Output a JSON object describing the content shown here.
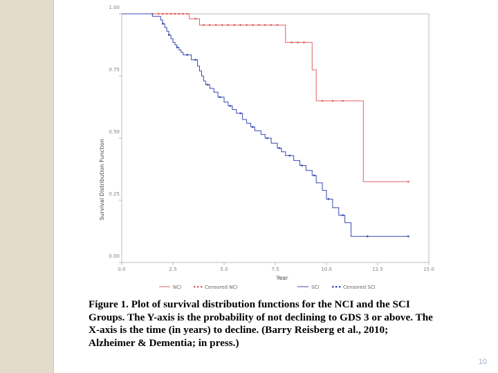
{
  "slide": {
    "caption": "Figure 1. Plot of survival distribution functions for the NCI and the SCI Groups. The Y-axis is the probability of not declining to GDS 3 or above. The X-axis is the time (in years) to decline. (Barry Reisberg et al., 2010; Alzheimer & Dementia; in press.)",
    "page_number": "10",
    "accent_color": "#e4dccb"
  },
  "chart_data": {
    "type": "line",
    "step": true,
    "xlabel": "Year",
    "ylabel": "Survival Distribution Function",
    "xlim": [
      0,
      15
    ],
    "ylim": [
      0,
      1
    ],
    "x_ticks": [
      "0.0",
      "2.5",
      "5.0",
      "7.5",
      "10.0",
      "12.5",
      "15.0"
    ],
    "y_ticks": [
      "0.00",
      "0.25",
      "0.50",
      "0.75",
      "1.00"
    ],
    "grid": false,
    "legend_position": "bottom",
    "legend": [
      {
        "label": "NCI",
        "kind": "line",
        "color": "#e06060"
      },
      {
        "label": "Censored NCI",
        "kind": "marker",
        "color": "#e06060"
      },
      {
        "label": "SCI",
        "kind": "line",
        "color": "#3548b0"
      },
      {
        "label": "Censored SCI",
        "kind": "marker",
        "color": "#3548b0"
      }
    ],
    "series": [
      {
        "name": "NCI",
        "color": "#e06060",
        "x": [
          0,
          3.3,
          3.8,
          8.0,
          9.3,
          9.5,
          11.8,
          14.0
        ],
        "y": [
          1.0,
          0.98,
          0.955,
          0.885,
          0.775,
          0.65,
          0.325,
          0.325
        ],
        "censored_x": [
          1.5,
          1.8,
          2.0,
          2.2,
          2.4,
          2.6,
          2.8,
          3.0,
          3.2,
          3.6,
          4.0,
          4.3,
          4.6,
          4.9,
          5.2,
          5.5,
          5.8,
          6.1,
          6.4,
          6.7,
          7.0,
          7.3,
          7.6,
          8.3,
          8.6,
          8.9,
          9.8,
          10.3,
          10.8,
          14.0
        ]
      },
      {
        "name": "SCI",
        "color": "#3548b0",
        "x": [
          0,
          1.5,
          1.9,
          2.0,
          2.1,
          2.2,
          2.3,
          2.4,
          2.5,
          2.6,
          2.7,
          2.8,
          2.9,
          3.0,
          3.4,
          3.7,
          3.8,
          3.9,
          4.0,
          4.1,
          4.3,
          4.5,
          4.7,
          5.0,
          5.2,
          5.4,
          5.6,
          5.9,
          6.1,
          6.3,
          6.5,
          6.8,
          7.0,
          7.3,
          7.6,
          7.8,
          8.0,
          8.4,
          8.7,
          9.0,
          9.3,
          9.5,
          9.8,
          10.0,
          10.3,
          10.6,
          10.9,
          11.2,
          14.0
        ],
        "y": [
          1.0,
          0.99,
          0.975,
          0.96,
          0.945,
          0.93,
          0.915,
          0.9,
          0.885,
          0.875,
          0.865,
          0.855,
          0.845,
          0.835,
          0.815,
          0.79,
          0.77,
          0.75,
          0.73,
          0.715,
          0.7,
          0.685,
          0.665,
          0.645,
          0.63,
          0.615,
          0.6,
          0.575,
          0.56,
          0.545,
          0.53,
          0.515,
          0.5,
          0.48,
          0.46,
          0.445,
          0.43,
          0.41,
          0.39,
          0.37,
          0.35,
          0.32,
          0.29,
          0.255,
          0.22,
          0.19,
          0.16,
          0.105,
          0.105
        ],
        "censored_x": [
          2.0,
          2.3,
          2.7,
          3.2,
          3.6,
          4.2,
          4.8,
          5.3,
          5.8,
          6.4,
          7.1,
          7.7,
          8.2,
          8.8,
          9.4,
          10.1,
          10.8,
          12.0,
          14.0
        ]
      }
    ]
  }
}
